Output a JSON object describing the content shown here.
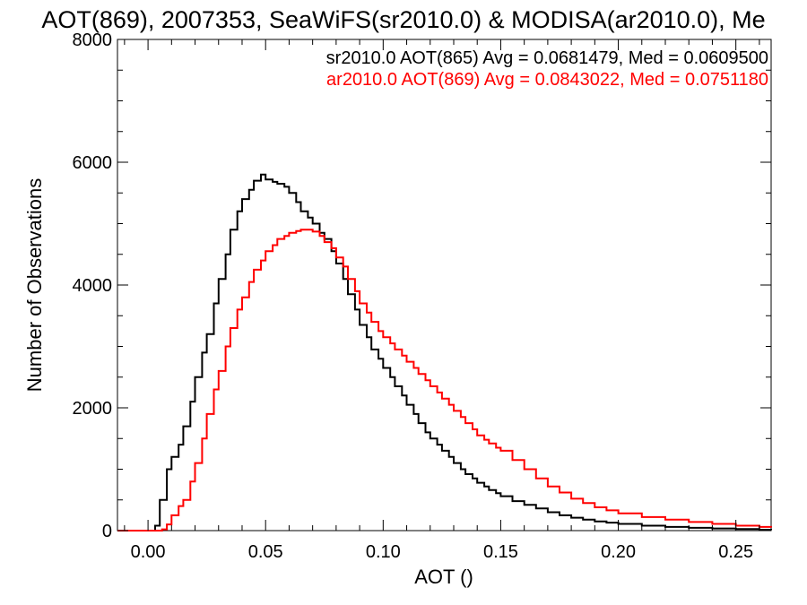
{
  "chart_data": {
    "type": "line",
    "title": "AOT(869), 2007353, SeaWiFS(sr2010.0) & MODISA(ar2010.0), Me",
    "xlabel": "AOT ()",
    "ylabel": "Number of Observations",
    "xlim": [
      -0.013,
      0.265
    ],
    "ylim": [
      0,
      8000
    ],
    "x_ticks": [
      0.0,
      0.05,
      0.1,
      0.15,
      0.2,
      0.25
    ],
    "x_tick_labels": [
      "0.00",
      "0.05",
      "0.10",
      "0.15",
      "0.20",
      "0.25"
    ],
    "y_ticks": [
      0,
      2000,
      4000,
      6000,
      8000
    ],
    "y_tick_labels": [
      "0",
      "2000",
      "4000",
      "6000",
      "8000"
    ],
    "grid": false,
    "legend_placement": "top-right",
    "annotations": [
      {
        "text": "sr2010.0 AOT(865) Avg = 0.0681479, Med = 0.0609500",
        "color": "#000000"
      },
      {
        "text": "ar2010.0 AOT(869) Avg = 0.0843022, Med = 0.0751180",
        "color": "#ff0000"
      }
    ],
    "series": [
      {
        "color": "#000000",
        "points": [
          [
            -0.013,
            0
          ],
          [
            0.0,
            0
          ],
          [
            0.003,
            80
          ],
          [
            0.005,
            500
          ],
          [
            0.008,
            1000
          ],
          [
            0.01,
            1200
          ],
          [
            0.013,
            1400
          ],
          [
            0.015,
            1700
          ],
          [
            0.018,
            2100
          ],
          [
            0.02,
            2500
          ],
          [
            0.023,
            2900
          ],
          [
            0.025,
            3200
          ],
          [
            0.028,
            3700
          ],
          [
            0.03,
            4100
          ],
          [
            0.033,
            4500
          ],
          [
            0.035,
            4900
          ],
          [
            0.038,
            5200
          ],
          [
            0.04,
            5400
          ],
          [
            0.043,
            5550
          ],
          [
            0.045,
            5700
          ],
          [
            0.048,
            5800
          ],
          [
            0.05,
            5720
          ],
          [
            0.053,
            5680
          ],
          [
            0.055,
            5650
          ],
          [
            0.058,
            5600
          ],
          [
            0.06,
            5500
          ],
          [
            0.063,
            5350
          ],
          [
            0.065,
            5200
          ],
          [
            0.068,
            5100
          ],
          [
            0.07,
            5000
          ],
          [
            0.073,
            4850
          ],
          [
            0.075,
            4750
          ],
          [
            0.078,
            4550
          ],
          [
            0.08,
            4350
          ],
          [
            0.083,
            4100
          ],
          [
            0.085,
            3850
          ],
          [
            0.088,
            3600
          ],
          [
            0.09,
            3350
          ],
          [
            0.093,
            3150
          ],
          [
            0.095,
            2950
          ],
          [
            0.098,
            2800
          ],
          [
            0.1,
            2650
          ],
          [
            0.103,
            2500
          ],
          [
            0.105,
            2350
          ],
          [
            0.108,
            2200
          ],
          [
            0.11,
            2050
          ],
          [
            0.113,
            1900
          ],
          [
            0.115,
            1750
          ],
          [
            0.118,
            1600
          ],
          [
            0.12,
            1500
          ],
          [
            0.123,
            1400
          ],
          [
            0.125,
            1300
          ],
          [
            0.128,
            1200
          ],
          [
            0.13,
            1100
          ],
          [
            0.133,
            1000
          ],
          [
            0.135,
            920
          ],
          [
            0.138,
            850
          ],
          [
            0.14,
            780
          ],
          [
            0.143,
            720
          ],
          [
            0.145,
            660
          ],
          [
            0.148,
            610
          ],
          [
            0.15,
            560
          ],
          [
            0.155,
            480
          ],
          [
            0.16,
            420
          ],
          [
            0.165,
            360
          ],
          [
            0.17,
            300
          ],
          [
            0.175,
            250
          ],
          [
            0.18,
            210
          ],
          [
            0.185,
            180
          ],
          [
            0.19,
            150
          ],
          [
            0.195,
            130
          ],
          [
            0.2,
            110
          ],
          [
            0.21,
            80
          ],
          [
            0.22,
            60
          ],
          [
            0.23,
            45
          ],
          [
            0.24,
            35
          ],
          [
            0.25,
            25
          ],
          [
            0.26,
            15
          ],
          [
            0.265,
            10
          ]
        ]
      },
      {
        "color": "#ff0000",
        "points": [
          [
            -0.013,
            0
          ],
          [
            0.004,
            0
          ],
          [
            0.006,
            20
          ],
          [
            0.008,
            100
          ],
          [
            0.01,
            250
          ],
          [
            0.013,
            400
          ],
          [
            0.015,
            500
          ],
          [
            0.018,
            800
          ],
          [
            0.02,
            1100
          ],
          [
            0.023,
            1500
          ],
          [
            0.025,
            1900
          ],
          [
            0.028,
            2300
          ],
          [
            0.03,
            2600
          ],
          [
            0.033,
            3000
          ],
          [
            0.035,
            3300
          ],
          [
            0.038,
            3600
          ],
          [
            0.04,
            3800
          ],
          [
            0.043,
            4050
          ],
          [
            0.045,
            4250
          ],
          [
            0.048,
            4400
          ],
          [
            0.05,
            4550
          ],
          [
            0.053,
            4650
          ],
          [
            0.055,
            4750
          ],
          [
            0.058,
            4800
          ],
          [
            0.06,
            4850
          ],
          [
            0.063,
            4880
          ],
          [
            0.065,
            4900
          ],
          [
            0.068,
            4900
          ],
          [
            0.07,
            4870
          ],
          [
            0.073,
            4800
          ],
          [
            0.075,
            4700
          ],
          [
            0.078,
            4600
          ],
          [
            0.08,
            4450
          ],
          [
            0.083,
            4300
          ],
          [
            0.085,
            4100
          ],
          [
            0.088,
            3900
          ],
          [
            0.09,
            3700
          ],
          [
            0.093,
            3550
          ],
          [
            0.095,
            3400
          ],
          [
            0.098,
            3250
          ],
          [
            0.1,
            3150
          ],
          [
            0.103,
            3050
          ],
          [
            0.105,
            2950
          ],
          [
            0.108,
            2850
          ],
          [
            0.11,
            2750
          ],
          [
            0.113,
            2650
          ],
          [
            0.115,
            2550
          ],
          [
            0.118,
            2450
          ],
          [
            0.12,
            2350
          ],
          [
            0.123,
            2250
          ],
          [
            0.125,
            2150
          ],
          [
            0.128,
            2050
          ],
          [
            0.13,
            1950
          ],
          [
            0.133,
            1850
          ],
          [
            0.135,
            1750
          ],
          [
            0.138,
            1650
          ],
          [
            0.14,
            1550
          ],
          [
            0.143,
            1480
          ],
          [
            0.145,
            1420
          ],
          [
            0.148,
            1350
          ],
          [
            0.15,
            1300
          ],
          [
            0.155,
            1150
          ],
          [
            0.16,
            1000
          ],
          [
            0.165,
            850
          ],
          [
            0.17,
            720
          ],
          [
            0.175,
            620
          ],
          [
            0.18,
            520
          ],
          [
            0.185,
            450
          ],
          [
            0.19,
            380
          ],
          [
            0.195,
            330
          ],
          [
            0.2,
            280
          ],
          [
            0.21,
            220
          ],
          [
            0.22,
            180
          ],
          [
            0.23,
            140
          ],
          [
            0.24,
            110
          ],
          [
            0.25,
            80
          ],
          [
            0.26,
            60
          ],
          [
            0.265,
            50
          ]
        ]
      }
    ]
  }
}
